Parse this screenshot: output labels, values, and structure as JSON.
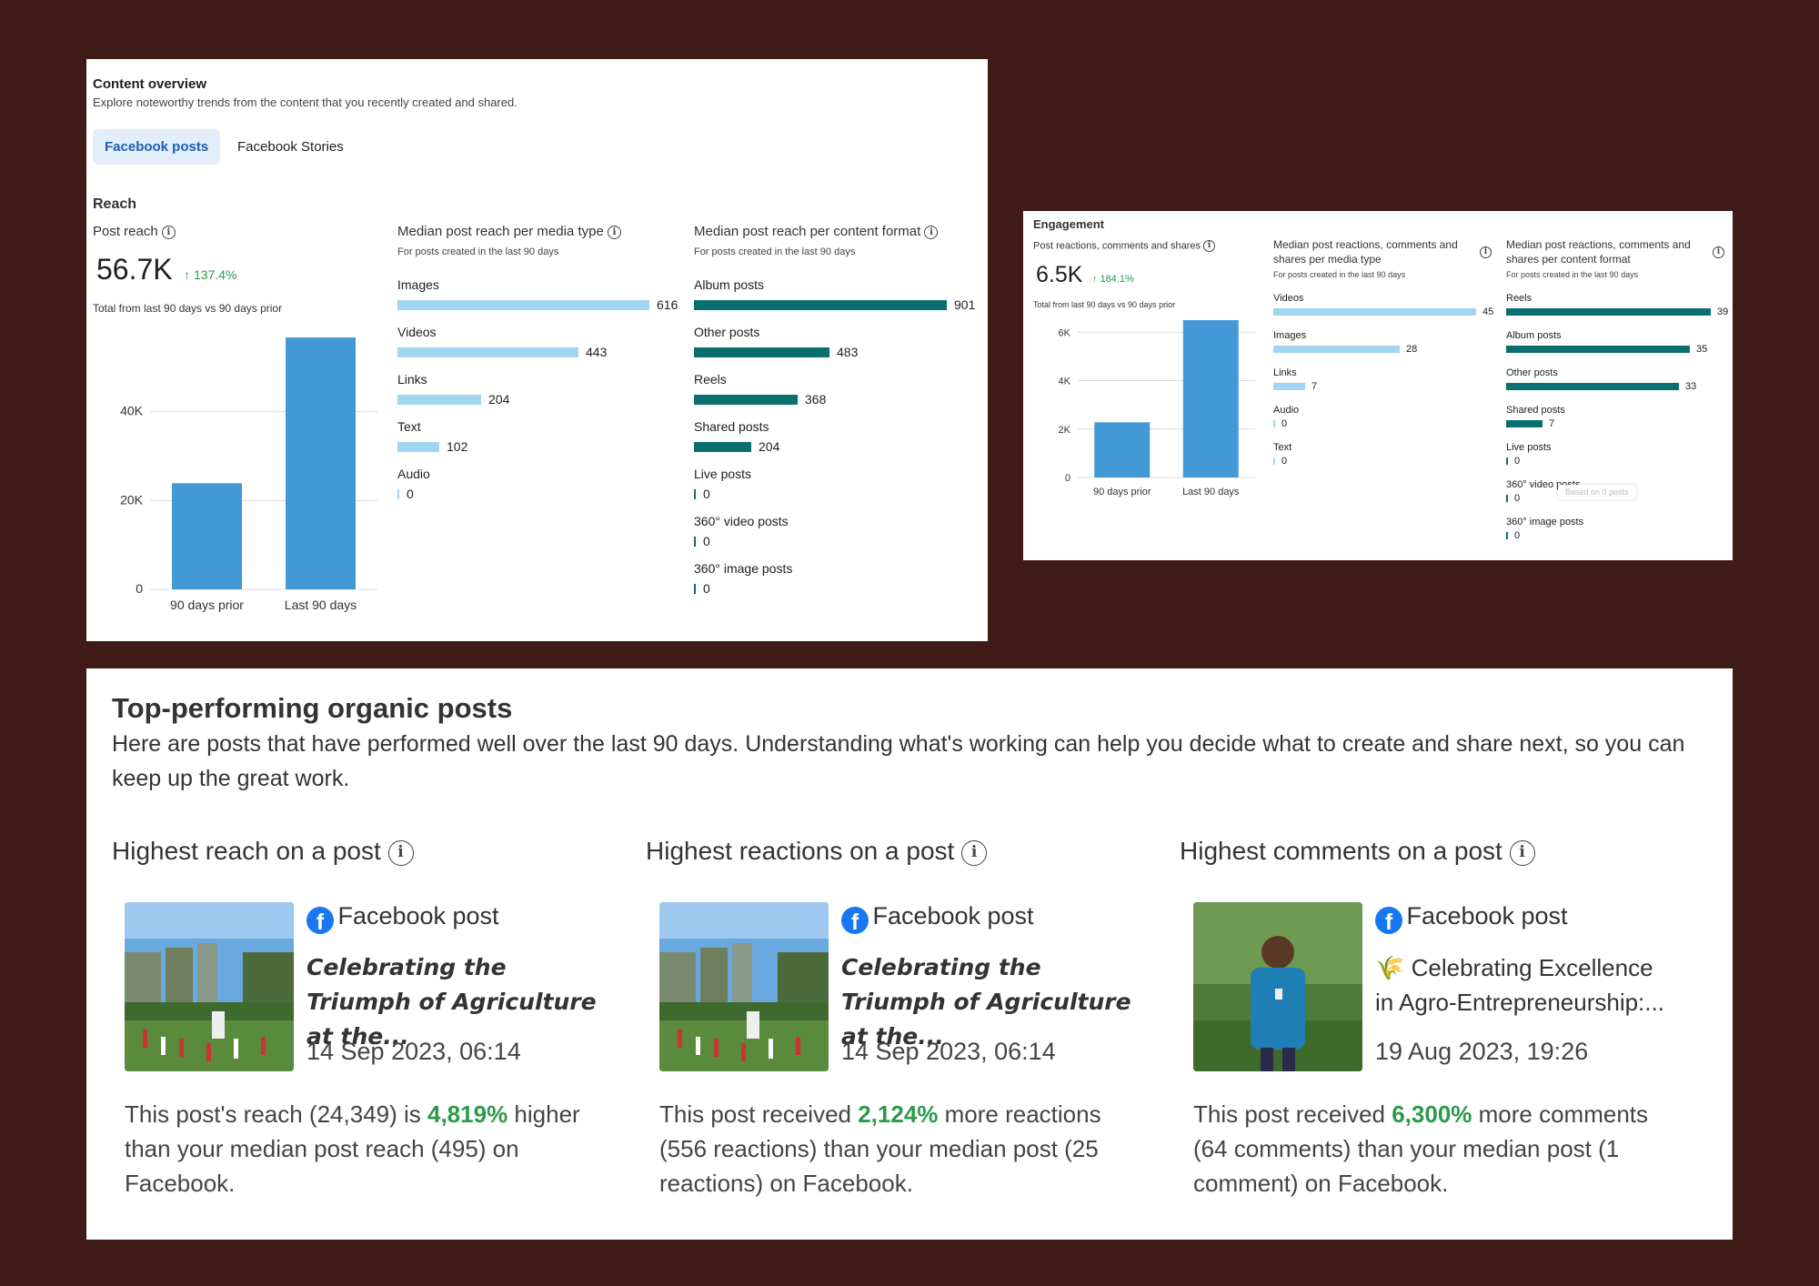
{
  "content_overview": {
    "title": "Content overview",
    "subtitle": "Explore noteworthy trends from the content that you recently created and shared.",
    "tabs": [
      "Facebook posts",
      "Facebook Stories"
    ],
    "section": "Reach",
    "post_reach": {
      "label": "Post reach",
      "value": "56.7K",
      "change": "↑ 137.4%",
      "note": "Total from last 90 days vs 90 days prior",
      "chart_data": {
        "type": "bar",
        "categories": [
          "90 days prior",
          "Last 90 days"
        ],
        "values": [
          23900,
          56700
        ],
        "y_ticks": [
          "0",
          "20K",
          "40K"
        ],
        "ylim": [
          0,
          60000
        ],
        "color": "#4299d6"
      }
    },
    "media_type": {
      "title": "Median post reach per media type",
      "subtitle": "For posts created in the last 90 days",
      "chart_data": {
        "type": "bar",
        "orientation": "horizontal",
        "categories": [
          "Images",
          "Videos",
          "Links",
          "Text",
          "Audio"
        ],
        "values": [
          616,
          443,
          204,
          102,
          0
        ],
        "max": 616,
        "color": "#a1d6f1"
      }
    },
    "content_format": {
      "title": "Median post reach per content format",
      "subtitle": "For posts created in the last 90 days",
      "chart_data": {
        "type": "bar",
        "orientation": "horizontal",
        "categories": [
          "Album posts",
          "Other posts",
          "Reels",
          "Shared posts",
          "Live posts",
          "360° video posts",
          "360° image posts"
        ],
        "values": [
          901,
          483,
          368,
          204,
          0,
          0,
          0
        ],
        "max": 901,
        "color": "#0b6e6f"
      }
    }
  },
  "engagement": {
    "section": "Engagement",
    "metric": {
      "label": "Post reactions, comments and shares",
      "value": "6.5K",
      "change": "↑ 184.1%",
      "note": "Total from last 90 days vs 90 days prior",
      "chart_data": {
        "type": "bar",
        "categories": [
          "90 days prior",
          "Last 90 days"
        ],
        "values": [
          2280,
          6500
        ],
        "y_ticks": [
          "0",
          "2K",
          "4K",
          "6K"
        ],
        "ylim": [
          0,
          6500
        ],
        "color": "#4299d6"
      }
    },
    "media_type": {
      "title": "Median post reactions, comments and shares per media type",
      "subtitle": "For posts created in the last 90 days",
      "chart_data": {
        "type": "bar",
        "orientation": "horizontal",
        "categories": [
          "Videos",
          "Images",
          "Links",
          "Audio",
          "Text"
        ],
        "values": [
          45,
          28,
          7,
          0,
          0
        ],
        "max": 45,
        "color": "#a1d6f1"
      }
    },
    "content_format": {
      "title": "Median post reactions, comments and shares per content format",
      "subtitle": "For posts created in the last 90 days",
      "tooltip": "Based on 0 posts",
      "chart_data": {
        "type": "bar",
        "orientation": "horizontal",
        "categories": [
          "Reels",
          "Album posts",
          "Other posts",
          "Shared posts",
          "Live posts",
          "360° video posts",
          "360° image posts"
        ],
        "values": [
          39,
          35,
          33,
          7,
          0,
          0,
          0
        ],
        "max": 39,
        "color": "#0b6e6f"
      }
    }
  },
  "top_posts": {
    "title": "Top-performing organic posts",
    "description": "Here are posts that have performed well over the last 90 days. Understanding what's working can help you decide what to create and share next, so you can keep up the great work.",
    "columns": [
      {
        "heading": "Highest reach on a post",
        "post_type": "Facebook post",
        "post_title": "Celebrating the Triumph of Agriculture at the...",
        "date": "14 Sep 2023, 06:14",
        "desc_pre": "This post's reach (24,349) is ",
        "desc_pct": "4,819%",
        "desc_post": " higher than your median post reach (495) on Facebook."
      },
      {
        "heading": "Highest reactions on a post",
        "post_type": "Facebook post",
        "post_title": "Celebrating the Triumph of Agriculture at the...",
        "date": "14 Sep 2023, 06:14",
        "desc_pre": "This post received ",
        "desc_pct": "2,124%",
        "desc_post": " more reactions (556 reactions) than your median post (25 reactions) on Facebook."
      },
      {
        "heading": "Highest comments on a post",
        "post_type": "Facebook post",
        "post_title": "🌾 Celebrating Excellence in Agro-Entrepreneurship:...",
        "date": "19 Aug 2023, 19:26",
        "desc_pre": "This post received ",
        "desc_pct": "6,300%",
        "desc_post": " more comments (64 comments) than your median post (1 comment) on Facebook."
      }
    ]
  }
}
